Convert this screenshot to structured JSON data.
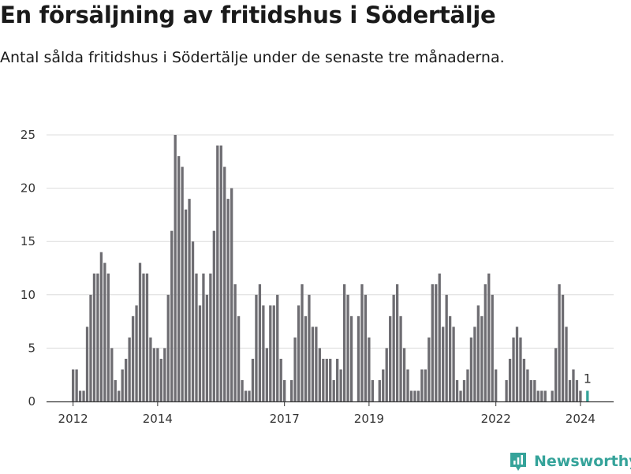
{
  "title": "En försäljning av fritidshus i Södertälje",
  "subtitle": "Antal sålda fritidshus i Södertälje under de senaste tre månaderna.",
  "brand": {
    "name": "Newsworthy",
    "icon": "newsworthy-logo-icon",
    "color": "#35a39a"
  },
  "chart_data": {
    "type": "bar",
    "title": "En försäljning av fritidshus i Södertälje",
    "subtitle": "Antal sålda fritidshus i Södertälje under de senaste tre månaderna.",
    "xlabel": "",
    "ylabel": "",
    "ylim": [
      0,
      25
    ],
    "yticks": [
      "0",
      "5",
      "10",
      "15",
      "20",
      "25"
    ],
    "xticks": [
      "2012",
      "2014",
      "2017",
      "2019",
      "2022",
      "2024"
    ],
    "grid": true,
    "colors": {
      "bar": "#6e6d72",
      "highlight": "#35a39a"
    },
    "highlight_label": "1",
    "series": [
      {
        "values": [
          3,
          3,
          1,
          1,
          7,
          10,
          12,
          12,
          14,
          13,
          12,
          5,
          2,
          1,
          3,
          4,
          6,
          8,
          9,
          13,
          12,
          12,
          6,
          5,
          5,
          4,
          5,
          10,
          16,
          25,
          23,
          22,
          18,
          19,
          15,
          12,
          9,
          12,
          10,
          12,
          16,
          24,
          24,
          22,
          19,
          20,
          11,
          8,
          2,
          1,
          1,
          4,
          10,
          11,
          9,
          5,
          9,
          9,
          10,
          4,
          2,
          0,
          2,
          6,
          9,
          11,
          8,
          10,
          7,
          7,
          5,
          4,
          4,
          4,
          2,
          4,
          3,
          11,
          10,
          8,
          0,
          8,
          11,
          10,
          6,
          2,
          0,
          2,
          3,
          5,
          8,
          10,
          11,
          8,
          5,
          3,
          1,
          1,
          1,
          3,
          3,
          6,
          11,
          11,
          12,
          7,
          10,
          8,
          7,
          2,
          1,
          2,
          3,
          6,
          7,
          9,
          8,
          11,
          12,
          10,
          3,
          0,
          0,
          2,
          4,
          6,
          7,
          6,
          4,
          3,
          2,
          2,
          1,
          1,
          1,
          0,
          1,
          5,
          11,
          10,
          7,
          2,
          3,
          2,
          1,
          0,
          1
        ]
      }
    ]
  }
}
